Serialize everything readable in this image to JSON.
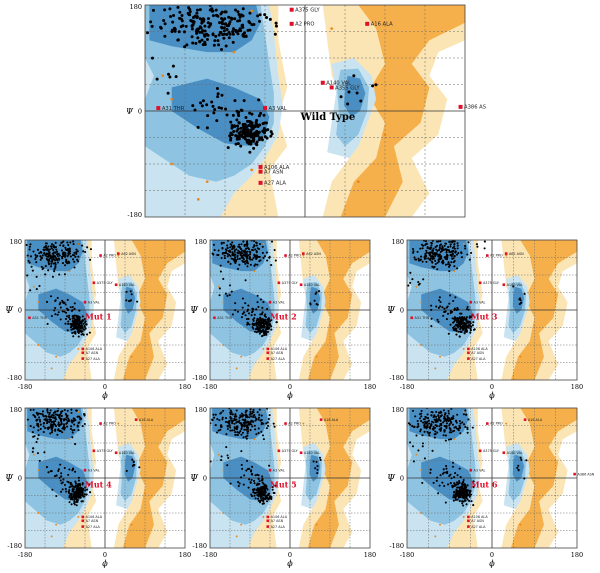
{
  "figure": {
    "psi_symbol": "Ψ",
    "phi_symbol": "ϕ"
  },
  "colors": {
    "core": "#4a8fc4",
    "allowed": "#8ec4e2",
    "generous": "#c9e3f1",
    "gen_beta": "#f5b04c",
    "gen_beta_light": "#fbe5b4",
    "residue_marker": "#e0102a",
    "glycine_marker": "#e0102a",
    "point": "#000000"
  },
  "chart_data": [
    {
      "id": "wild",
      "type": "scatter",
      "label": "Wild Type",
      "xlim": [
        -180,
        180
      ],
      "ylim": [
        -180,
        180
      ],
      "x_ticks": [],
      "y_ticks": [
        "180",
        "0",
        "-180"
      ],
      "annotations": [
        {
          "text": "A375 GLY",
          "x": -15,
          "y": 172
        },
        {
          "text": "A2 PRO",
          "x": -15,
          "y": 148
        },
        {
          "text": "A140 VAL",
          "x": 20,
          "y": 48
        },
        {
          "text": "A355 GLY",
          "x": 30,
          "y": 40
        },
        {
          "text": "A16 ALA",
          "x": 70,
          "y": 148
        },
        {
          "text": "A31 THR",
          "x": -165,
          "y": 5
        },
        {
          "text": "A3 VAL",
          "x": -45,
          "y": 5
        },
        {
          "text": "A386 AS",
          "x": 175,
          "y": 7
        },
        {
          "text": "A106 ALA",
          "x": -50,
          "y": -95
        },
        {
          "text": "A7 ASN",
          "x": -50,
          "y": -103
        },
        {
          "text": "A27 ALA",
          "x": -50,
          "y": -122
        }
      ]
    },
    {
      "id": "m1",
      "type": "scatter",
      "label": "Mut 1",
      "xlim": [
        -180,
        180
      ],
      "ylim": [
        -180,
        180
      ],
      "x_ticks": [
        "-180",
        "0",
        "180"
      ],
      "y_ticks": [
        "180",
        "0",
        "-180"
      ],
      "annotations": [
        {
          "text": "A2 PRO",
          "x": -10,
          "y": 140
        },
        {
          "text": "A62 ASN",
          "x": 30,
          "y": 145
        },
        {
          "text": "A375 GLY",
          "x": -25,
          "y": 70
        },
        {
          "text": "A140 VAL",
          "x": 25,
          "y": 65
        },
        {
          "text": "A31 THR",
          "x": -170,
          "y": -20
        },
        {
          "text": "A3 VAL",
          "x": -45,
          "y": 20
        },
        {
          "text": "A106 ALA",
          "x": -50,
          "y": -100
        },
        {
          "text": "A7 ASN",
          "x": -50,
          "y": -110
        },
        {
          "text": "A27 ALA",
          "x": -50,
          "y": -125
        }
      ]
    },
    {
      "id": "m2",
      "type": "scatter",
      "label": "Mut 2",
      "xlim": [
        -180,
        180
      ],
      "ylim": [
        -180,
        180
      ],
      "x_ticks": [
        "-180",
        "0",
        "180"
      ],
      "y_ticks": [
        "180",
        "0",
        "-180"
      ],
      "annotations": [
        {
          "text": "A2 PRO",
          "x": -10,
          "y": 140
        },
        {
          "text": "A62 ASN",
          "x": 30,
          "y": 145
        },
        {
          "text": "A375 GLY",
          "x": -25,
          "y": 70
        },
        {
          "text": "A140 VAL",
          "x": 25,
          "y": 65
        },
        {
          "text": "A31 THR",
          "x": -170,
          "y": -20
        },
        {
          "text": "A3 VAL",
          "x": -45,
          "y": 20
        },
        {
          "text": "A106 ALA",
          "x": -50,
          "y": -100
        },
        {
          "text": "A7 ASN",
          "x": -50,
          "y": -110
        },
        {
          "text": "A27 ALA",
          "x": -50,
          "y": -125
        }
      ]
    },
    {
      "id": "m3",
      "type": "scatter",
      "label": "Mut 3",
      "xlim": [
        -180,
        180
      ],
      "ylim": [
        -180,
        180
      ],
      "x_ticks": [
        "-180",
        "0",
        "180"
      ],
      "y_ticks": [
        "180",
        "0",
        "-180"
      ],
      "annotations": [
        {
          "text": "A2 PRO",
          "x": -10,
          "y": 140
        },
        {
          "text": "A62 ASN",
          "x": 30,
          "y": 145
        },
        {
          "text": "A375 GLY",
          "x": -25,
          "y": 70
        },
        {
          "text": "A140 VAL",
          "x": 25,
          "y": 65
        },
        {
          "text": "A31 THR",
          "x": -170,
          "y": -20
        },
        {
          "text": "A3 VAL",
          "x": -45,
          "y": 20
        },
        {
          "text": "A106 ALA",
          "x": -50,
          "y": -100
        },
        {
          "text": "A7 ASN",
          "x": -50,
          "y": -110
        },
        {
          "text": "A27 ALA",
          "x": -50,
          "y": -125
        }
      ]
    },
    {
      "id": "m4",
      "type": "scatter",
      "label": "Mut 4",
      "xlim": [
        -180,
        180
      ],
      "ylim": [
        -180,
        180
      ],
      "x_ticks": [
        "-180",
        "0",
        "180"
      ],
      "y_ticks": [
        "180",
        "0",
        "-180"
      ],
      "annotations": [
        {
          "text": "A2 PRO",
          "x": -10,
          "y": 140
        },
        {
          "text": "A16 ALA",
          "x": 70,
          "y": 150
        },
        {
          "text": "A375 GLY",
          "x": -25,
          "y": 70
        },
        {
          "text": "A140 VAL",
          "x": 25,
          "y": 65
        },
        {
          "text": "A3 VAL",
          "x": -45,
          "y": 20
        },
        {
          "text": "A106 ALA",
          "x": -50,
          "y": -100
        },
        {
          "text": "A7 ASN",
          "x": -50,
          "y": -110
        },
        {
          "text": "A27 ALA",
          "x": -50,
          "y": -125
        }
      ]
    },
    {
      "id": "m5",
      "type": "scatter",
      "label": "Mut 5",
      "xlim": [
        -180,
        180
      ],
      "ylim": [
        -180,
        180
      ],
      "x_ticks": [
        "-180",
        "0",
        "180"
      ],
      "y_ticks": [
        "180",
        "0",
        "-180"
      ],
      "annotations": [
        {
          "text": "A2 PRO",
          "x": -10,
          "y": 140
        },
        {
          "text": "A16 ALA",
          "x": 70,
          "y": 150
        },
        {
          "text": "A375 GLY",
          "x": -25,
          "y": 70
        },
        {
          "text": "A140 VAL",
          "x": 25,
          "y": 65
        },
        {
          "text": "A3 VAL",
          "x": -45,
          "y": 20
        },
        {
          "text": "A106 ALA",
          "x": -50,
          "y": -100
        },
        {
          "text": "A7 ASN",
          "x": -50,
          "y": -110
        },
        {
          "text": "A27 ALA",
          "x": -50,
          "y": -125
        }
      ]
    },
    {
      "id": "m6",
      "type": "scatter",
      "label": "Mut 6",
      "xlim": [
        -180,
        180
      ],
      "ylim": [
        -180,
        180
      ],
      "x_ticks": [
        "-180",
        "0",
        "180"
      ],
      "y_ticks": [
        "180",
        "0",
        "-180"
      ],
      "annotations": [
        {
          "text": "A2 PRO",
          "x": -10,
          "y": 140
        },
        {
          "text": "A16 ALA",
          "x": 70,
          "y": 150
        },
        {
          "text": "A375 GLY",
          "x": -25,
          "y": 70
        },
        {
          "text": "A140 VAL",
          "x": 25,
          "y": 65
        },
        {
          "text": "A386 ASN",
          "x": 175,
          "y": 10
        },
        {
          "text": "A3 VAL",
          "x": -45,
          "y": 20
        },
        {
          "text": "A106 ALA",
          "x": -50,
          "y": -100
        },
        {
          "text": "A7 ASN",
          "x": -50,
          "y": -110
        },
        {
          "text": "A27 ALA",
          "x": -50,
          "y": -125
        }
      ]
    }
  ]
}
